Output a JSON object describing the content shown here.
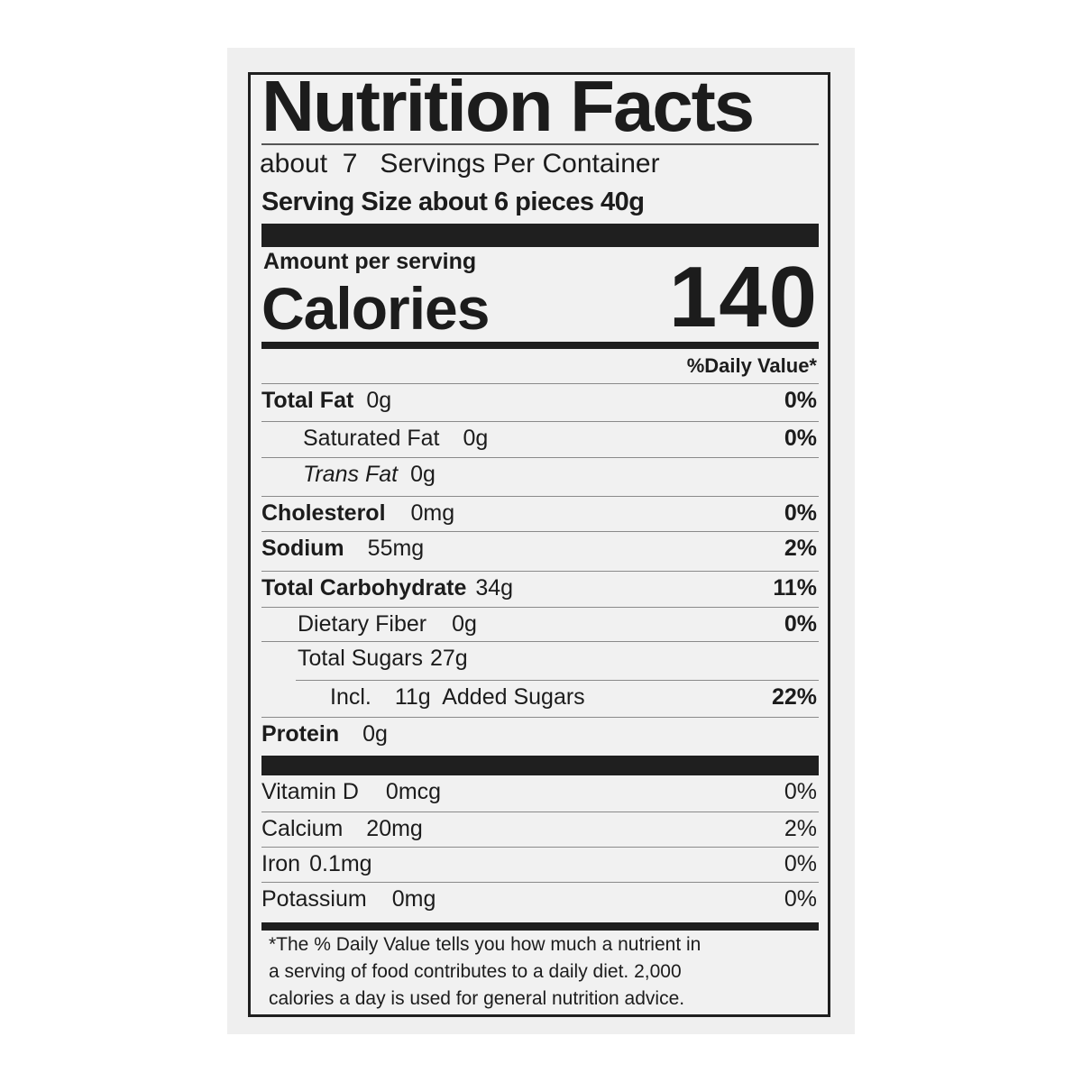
{
  "label": {
    "title": "Nutrition Facts",
    "servings_per_container": "about  7   Servings Per Container",
    "serving_size": "Serving Size about 6 pieces 40g",
    "amount_per_serving": "Amount per serving",
    "calories_label": "Calories",
    "calories_value": "140",
    "daily_value_header": "%Daily Value*",
    "nutrients": [
      {
        "name": "Total Fat",
        "amount": "0g",
        "dv": "0%"
      },
      {
        "name": "Saturated Fat",
        "amount": "0g",
        "dv": "0%"
      },
      {
        "name": "Trans Fat",
        "amount": "0g",
        "dv": ""
      },
      {
        "name": "Cholesterol",
        "amount": "0mg",
        "dv": "0%"
      },
      {
        "name": "Sodium",
        "amount": "55mg",
        "dv": "2%"
      },
      {
        "name": "Total Carbohydrate",
        "amount": "34g",
        "dv": "11%"
      },
      {
        "name": "Dietary Fiber",
        "amount": "0g",
        "dv": "0%"
      },
      {
        "name": "Total Sugars",
        "amount": "27g",
        "dv": ""
      },
      {
        "name": "Incl.",
        "amount": "11g  Added Sugars",
        "dv": "22%"
      },
      {
        "name": "Protein",
        "amount": "0g",
        "dv": ""
      }
    ],
    "vitamins": [
      {
        "name": "Vitamin D",
        "amount": "0mcg",
        "dv": "0%"
      },
      {
        "name": "Calcium",
        "amount": "20mg",
        "dv": "2%"
      },
      {
        "name": "Iron",
        "amount": "0.1mg",
        "dv": "0%"
      },
      {
        "name": "Potassium",
        "amount": "0mg",
        "dv": "0%"
      }
    ],
    "footnote": [
      "*The % Daily Value tells you how much a nutrient in",
      "a serving of food contributes to a daily diet. 2,000",
      "calories a day is used for general nutrition advice."
    ]
  }
}
